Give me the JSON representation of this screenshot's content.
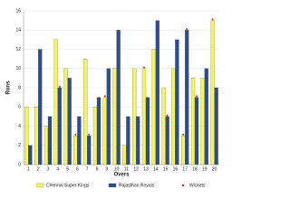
{
  "chart_data": {
    "type": "bar",
    "x_label": "Overs",
    "y_label": "Runs",
    "categories": [
      "1",
      "2",
      "3",
      "4",
      "5",
      "6",
      "7",
      "8",
      "9",
      "10",
      "11",
      "12",
      "13",
      "14",
      "15",
      "16",
      "17",
      "18",
      "19",
      "20"
    ],
    "series": [
      {
        "name": "Chennai Super Kings",
        "color": "#f5f55a",
        "values": [
          6,
          6,
          4,
          13,
          10,
          3,
          11,
          6,
          7,
          10,
          2,
          10,
          10,
          12,
          8,
          10,
          3,
          9,
          9,
          15
        ],
        "wickets": [
          0,
          0,
          0,
          0,
          0,
          1,
          0,
          0,
          1,
          0,
          0,
          0,
          1,
          0,
          0,
          0,
          1,
          0,
          0,
          1
        ]
      },
      {
        "name": "Rajasthan Royals",
        "color": "#2e4d8f",
        "values": [
          2,
          12,
          5,
          8,
          9,
          5,
          3,
          7,
          10,
          14,
          5,
          5,
          7,
          15,
          5,
          13,
          14,
          7,
          10,
          8
        ],
        "wickets": [
          0,
          0,
          0,
          1,
          0,
          0,
          1,
          0,
          0,
          0,
          0,
          0,
          0,
          0,
          1,
          0,
          1,
          1,
          0,
          0
        ]
      }
    ],
    "wicket_legend": {
      "name": "Wickets",
      "color": "#e0201b"
    },
    "ylim": [
      0,
      16
    ],
    "yticks": [
      0,
      2,
      4,
      6,
      8,
      10,
      12,
      14,
      16
    ],
    "grid": true
  }
}
